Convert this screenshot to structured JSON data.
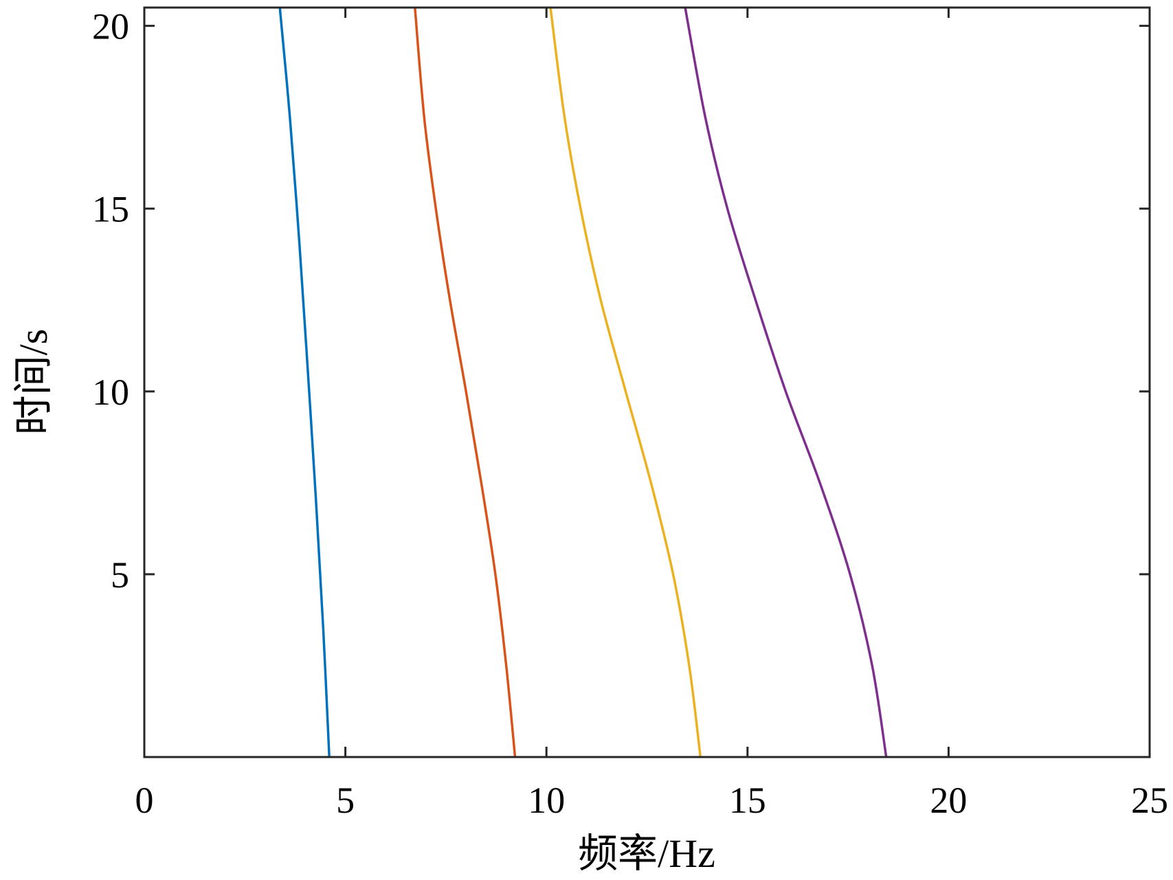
{
  "chart_data": {
    "type": "line",
    "title": "",
    "xlabel": "频率/Hz",
    "ylabel": "时间/s",
    "xlim": [
      0,
      25
    ],
    "ylim": [
      0,
      20.5
    ],
    "x_ticks": [
      0,
      5,
      10,
      15,
      20,
      25
    ],
    "x_tick_labels": [
      "0",
      "5",
      "10",
      "15",
      "20",
      "25"
    ],
    "y_ticks": [
      5,
      10,
      15,
      20
    ],
    "y_tick_labels": [
      "5",
      "10",
      "15",
      "20"
    ],
    "grid": false,
    "legend": "none",
    "series": [
      {
        "color": "#0072BD",
        "points": [
          [
            4.6,
            0
          ],
          [
            4.45,
            3.5
          ],
          [
            4.27,
            7
          ],
          [
            4.07,
            10.5
          ],
          [
            3.86,
            14
          ],
          [
            3.62,
            17.5
          ],
          [
            3.37,
            20.5
          ]
        ]
      },
      {
        "color": "#D95319",
        "points": [
          [
            9.22,
            0
          ],
          [
            9.0,
            2.5
          ],
          [
            8.73,
            5
          ],
          [
            8.38,
            7.5
          ],
          [
            8.0,
            10
          ],
          [
            7.6,
            12.5
          ],
          [
            7.25,
            15
          ],
          [
            6.96,
            17.5
          ],
          [
            6.73,
            20.5
          ]
        ]
      },
      {
        "color": "#EDB120",
        "points": [
          [
            13.83,
            0
          ],
          [
            13.55,
            2.5
          ],
          [
            13.15,
            5
          ],
          [
            12.6,
            7.5
          ],
          [
            11.97,
            10
          ],
          [
            11.35,
            12.5
          ],
          [
            10.85,
            15
          ],
          [
            10.45,
            17.5
          ],
          [
            10.1,
            20.5
          ]
        ]
      },
      {
        "color": "#7E2F8E",
        "points": [
          [
            18.45,
            0
          ],
          [
            18.1,
            2.5
          ],
          [
            17.55,
            5
          ],
          [
            16.8,
            7.5
          ],
          [
            15.95,
            10
          ],
          [
            15.2,
            12.5
          ],
          [
            14.5,
            15
          ],
          [
            13.95,
            17.5
          ],
          [
            13.45,
            20.5
          ]
        ]
      }
    ]
  }
}
